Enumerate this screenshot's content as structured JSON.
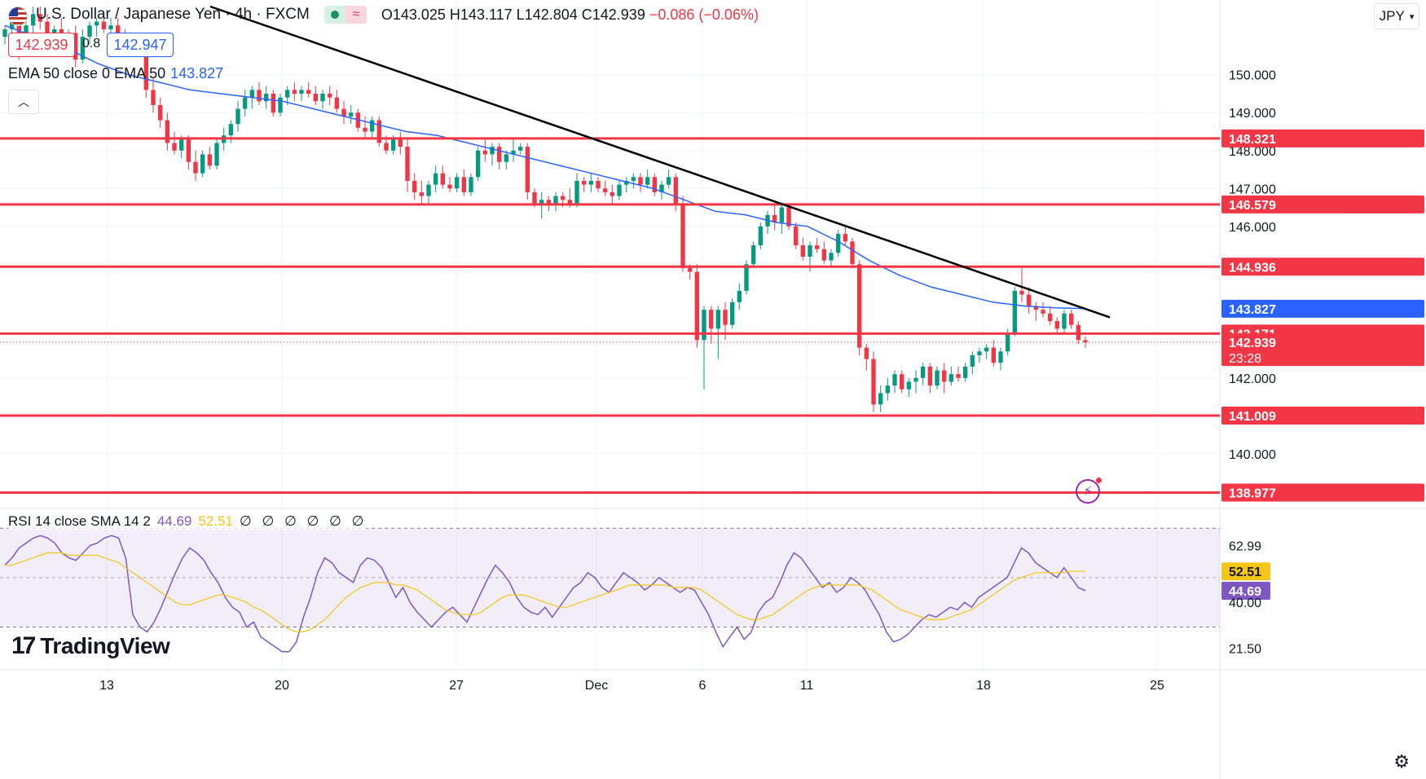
{
  "header": {
    "title": "U.S. Dollar / Japanese Yen · 4h · FXCM",
    "open": "O143.025",
    "high": "H143.117",
    "low": "L142.804",
    "close": "C142.939",
    "change": "−0.086 (−0.06%)"
  },
  "trade": {
    "sell": "142.939",
    "spread": "0.8",
    "buy": "142.947"
  },
  "ema_legend": {
    "label": "EMA 50 close 0 EMA 50",
    "value": "143.827"
  },
  "rsi_legend": {
    "label": "RSI 14 close SMA 14 2",
    "rsi": "44.69",
    "sma": "52.51",
    "placeholders": "∅ ∅ ∅ ∅ ∅ ∅"
  },
  "currency": "JPY",
  "brand": "TradingView",
  "colors": {
    "up": "#089981",
    "down": "#f23645",
    "ema": "#2962ff",
    "rsi": "#7e57c2",
    "rsi_sma": "#f5c518",
    "level": "#f23645",
    "trend": "#000000"
  },
  "chart_data": {
    "type": "candlestick",
    "symbol": "USDJPY",
    "timeframe": "4h",
    "price_axis": {
      "ticks": [
        150.0,
        149.0,
        148.0,
        147.0,
        146.0,
        142.0,
        140.0
      ],
      "range": [
        138.6,
        151.8
      ]
    },
    "x_axis": {
      "ticks": [
        "13",
        "20",
        "27",
        "Dec",
        "6",
        "11",
        "18",
        "25"
      ]
    },
    "levels": [
      148.321,
      146.579,
      144.936,
      143.171,
      141.009,
      138.977
    ],
    "level_labels": [
      "148.321",
      "146.579",
      "144.936",
      "143.171",
      "141.009",
      "138.977"
    ],
    "last_price": "142.939",
    "countdown": "23:28",
    "ema_value": "143.827",
    "trendline": [
      {
        "x": "Nov 16",
        "y": 151.8
      },
      {
        "x": "Dec 22",
        "y": 143.6
      }
    ],
    "ema50": [
      151.3,
      151.0,
      150.7,
      150.3,
      150.0,
      149.8,
      149.6,
      149.5,
      149.4,
      149.3,
      149.1,
      148.9,
      148.7,
      148.5,
      148.4,
      148.2,
      148.0,
      147.8,
      147.6,
      147.4,
      147.2,
      147.0,
      146.7,
      146.4,
      146.3,
      146.1,
      146.0,
      145.6,
      145.1,
      144.7,
      144.4,
      144.2,
      144.0,
      143.9,
      143.85,
      143.83
    ],
    "candles": [
      [
        151.0,
        151.3,
        150.8,
        151.2
      ],
      [
        151.2,
        151.6,
        151.0,
        151.4
      ],
      [
        151.4,
        151.6,
        150.4,
        150.6
      ],
      [
        150.6,
        151.4,
        150.5,
        151.3
      ],
      [
        151.3,
        151.8,
        151.1,
        151.6
      ],
      [
        151.6,
        151.8,
        151.2,
        151.4
      ],
      [
        151.4,
        151.6,
        151.0,
        151.1
      ],
      [
        151.1,
        151.3,
        150.9,
        151.2
      ],
      [
        151.2,
        151.5,
        150.7,
        150.8
      ],
      [
        150.8,
        151.2,
        150.6,
        151.1
      ],
      [
        151.1,
        151.3,
        150.2,
        150.4
      ],
      [
        150.4,
        151.2,
        150.3,
        151.0
      ],
      [
        151.0,
        151.4,
        150.8,
        151.3
      ],
      [
        151.3,
        151.5,
        151.0,
        151.4
      ],
      [
        151.4,
        151.6,
        151.1,
        151.2
      ],
      [
        151.2,
        151.5,
        151.0,
        151.3
      ],
      [
        151.3,
        151.5,
        150.9,
        151.0
      ],
      [
        151.0,
        151.2,
        150.6,
        150.7
      ],
      [
        150.7,
        151.0,
        150.5,
        150.9
      ],
      [
        150.9,
        151.0,
        150.6,
        150.8
      ],
      [
        150.8,
        150.9,
        149.4,
        149.6
      ],
      [
        149.6,
        149.9,
        149.0,
        149.2
      ],
      [
        149.2,
        149.4,
        148.6,
        148.8
      ],
      [
        148.8,
        149.0,
        148.0,
        148.2
      ],
      [
        148.2,
        148.5,
        147.9,
        148.0
      ],
      [
        148.0,
        148.4,
        147.8,
        148.3
      ],
      [
        148.3,
        148.4,
        147.5,
        147.7
      ],
      [
        147.7,
        148.0,
        147.2,
        147.4
      ],
      [
        147.4,
        148.0,
        147.3,
        147.9
      ],
      [
        147.9,
        148.1,
        147.5,
        147.6
      ],
      [
        147.6,
        148.3,
        147.5,
        148.2
      ],
      [
        148.2,
        148.6,
        148.0,
        148.4
      ],
      [
        148.4,
        148.8,
        148.2,
        148.7
      ],
      [
        148.7,
        149.3,
        148.5,
        149.1
      ],
      [
        149.1,
        149.6,
        148.9,
        149.4
      ],
      [
        149.4,
        149.7,
        149.1,
        149.6
      ],
      [
        149.6,
        149.8,
        149.2,
        149.3
      ],
      [
        149.3,
        149.7,
        149.1,
        149.5
      ],
      [
        149.5,
        149.6,
        148.9,
        149.0
      ],
      [
        149.0,
        149.5,
        148.9,
        149.4
      ],
      [
        149.4,
        149.7,
        149.2,
        149.6
      ],
      [
        149.6,
        149.8,
        149.3,
        149.5
      ],
      [
        149.5,
        149.7,
        149.3,
        149.6
      ],
      [
        149.6,
        149.8,
        149.4,
        149.5
      ],
      [
        149.5,
        149.7,
        149.2,
        149.3
      ],
      [
        149.3,
        149.6,
        149.1,
        149.5
      ],
      [
        149.5,
        149.7,
        149.2,
        149.4
      ],
      [
        149.4,
        149.6,
        149.0,
        149.1
      ],
      [
        149.1,
        149.3,
        148.7,
        148.9
      ],
      [
        148.9,
        149.2,
        148.7,
        149.0
      ],
      [
        149.0,
        149.1,
        148.5,
        148.6
      ],
      [
        148.6,
        148.9,
        148.3,
        148.5
      ],
      [
        148.5,
        148.9,
        148.3,
        148.8
      ],
      [
        148.8,
        148.9,
        148.1,
        148.2
      ],
      [
        148.2,
        148.4,
        147.9,
        148.0
      ],
      [
        148.0,
        148.4,
        147.9,
        148.3
      ],
      [
        148.3,
        148.5,
        147.9,
        148.1
      ],
      [
        148.1,
        148.3,
        146.9,
        147.2
      ],
      [
        147.2,
        147.4,
        146.7,
        146.9
      ],
      [
        146.9,
        147.2,
        146.6,
        146.8
      ],
      [
        146.8,
        147.2,
        146.6,
        147.1
      ],
      [
        147.1,
        147.6,
        146.9,
        147.4
      ],
      [
        147.4,
        147.6,
        147.0,
        147.1
      ],
      [
        147.1,
        147.3,
        146.9,
        147.0
      ],
      [
        147.0,
        147.4,
        146.9,
        147.3
      ],
      [
        147.3,
        147.5,
        146.8,
        146.9
      ],
      [
        146.9,
        147.4,
        146.8,
        147.3
      ],
      [
        147.3,
        148.1,
        147.2,
        148.0
      ],
      [
        148.0,
        148.3,
        147.7,
        147.9
      ],
      [
        147.9,
        148.2,
        147.6,
        148.1
      ],
      [
        148.1,
        148.2,
        147.5,
        147.7
      ],
      [
        147.7,
        148.0,
        147.5,
        147.9
      ],
      [
        147.9,
        148.3,
        147.7,
        148.0
      ],
      [
        148.0,
        148.2,
        147.9,
        148.1
      ],
      [
        148.1,
        148.2,
        146.7,
        146.9
      ],
      [
        146.9,
        147.0,
        146.5,
        146.6
      ],
      [
        146.6,
        146.9,
        146.2,
        146.7
      ],
      [
        146.7,
        146.8,
        146.4,
        146.6
      ],
      [
        146.6,
        146.9,
        146.4,
        146.8
      ],
      [
        146.8,
        146.9,
        146.5,
        146.7
      ],
      [
        146.7,
        147.0,
        146.5,
        146.6
      ],
      [
        146.6,
        147.4,
        146.5,
        147.2
      ],
      [
        147.2,
        147.3,
        146.9,
        147.1
      ],
      [
        147.1,
        147.4,
        146.9,
        147.2
      ],
      [
        147.2,
        147.3,
        146.9,
        147.0
      ],
      [
        147.0,
        147.2,
        146.8,
        146.9
      ],
      [
        146.9,
        147.1,
        146.6,
        146.8
      ],
      [
        146.8,
        147.2,
        146.7,
        147.1
      ],
      [
        147.1,
        147.3,
        146.9,
        147.2
      ],
      [
        147.2,
        147.4,
        147.0,
        147.3
      ],
      [
        147.3,
        147.4,
        146.9,
        147.1
      ],
      [
        147.1,
        147.5,
        147.0,
        147.3
      ],
      [
        147.3,
        147.4,
        146.8,
        146.9
      ],
      [
        146.9,
        147.2,
        146.7,
        147.1
      ],
      [
        147.1,
        147.5,
        147.0,
        147.3
      ],
      [
        147.3,
        147.4,
        146.4,
        146.6
      ],
      [
        146.6,
        146.8,
        144.8,
        144.9
      ],
      [
        144.9,
        145.0,
        144.6,
        144.8
      ],
      [
        144.8,
        145.0,
        142.8,
        143.0
      ],
      [
        143.0,
        143.9,
        141.7,
        143.8
      ],
      [
        143.8,
        143.9,
        142.9,
        143.3
      ],
      [
        143.3,
        143.9,
        142.5,
        143.8
      ],
      [
        143.8,
        144.0,
        143.0,
        143.4
      ],
      [
        143.4,
        144.1,
        143.3,
        144.0
      ],
      [
        144.0,
        144.5,
        143.8,
        144.3
      ],
      [
        144.3,
        145.1,
        144.2,
        145.0
      ],
      [
        145.0,
        145.6,
        144.9,
        145.5
      ],
      [
        145.5,
        146.1,
        145.4,
        146.0
      ],
      [
        146.0,
        146.4,
        145.8,
        146.3
      ],
      [
        146.3,
        146.6,
        145.9,
        146.1
      ],
      [
        146.1,
        146.6,
        145.8,
        146.5
      ],
      [
        146.5,
        146.6,
        145.9,
        146.0
      ],
      [
        146.0,
        146.1,
        145.4,
        145.5
      ],
      [
        145.5,
        145.7,
        145.1,
        145.2
      ],
      [
        145.2,
        145.6,
        144.8,
        145.5
      ],
      [
        145.5,
        145.7,
        145.3,
        145.4
      ],
      [
        145.4,
        145.6,
        145.0,
        145.1
      ],
      [
        145.1,
        145.4,
        144.9,
        145.3
      ],
      [
        145.3,
        145.9,
        145.2,
        145.8
      ],
      [
        145.8,
        146.0,
        145.5,
        145.6
      ],
      [
        145.6,
        145.7,
        144.9,
        145.0
      ],
      [
        145.0,
        145.1,
        142.6,
        142.8
      ],
      [
        142.8,
        142.9,
        142.2,
        142.5
      ],
      [
        142.5,
        142.7,
        141.1,
        141.3
      ],
      [
        141.3,
        141.8,
        141.1,
        141.6
      ],
      [
        141.6,
        142.0,
        141.4,
        141.8
      ],
      [
        141.8,
        142.2,
        141.6,
        142.1
      ],
      [
        142.1,
        142.2,
        141.6,
        141.7
      ],
      [
        141.7,
        142.0,
        141.5,
        141.9
      ],
      [
        141.9,
        142.2,
        141.6,
        142.0
      ],
      [
        142.0,
        142.4,
        141.8,
        142.3
      ],
      [
        142.3,
        142.4,
        141.6,
        141.8
      ],
      [
        141.8,
        142.3,
        141.7,
        142.2
      ],
      [
        142.2,
        142.4,
        141.6,
        141.9
      ],
      [
        141.9,
        142.3,
        141.8,
        142.1
      ],
      [
        142.1,
        142.3,
        141.9,
        142.0
      ],
      [
        142.0,
        142.4,
        141.9,
        142.3
      ],
      [
        142.3,
        142.7,
        142.1,
        142.6
      ],
      [
        142.6,
        142.8,
        142.4,
        142.7
      ],
      [
        142.7,
        142.9,
        142.5,
        142.8
      ],
      [
        142.8,
        143.0,
        142.3,
        142.4
      ],
      [
        142.4,
        142.8,
        142.2,
        142.7
      ],
      [
        142.7,
        143.3,
        142.6,
        143.2
      ],
      [
        143.2,
        144.4,
        143.1,
        144.3
      ],
      [
        144.3,
        144.9,
        144.0,
        144.2
      ],
      [
        144.2,
        144.4,
        143.7,
        143.9
      ],
      [
        143.9,
        144.0,
        143.5,
        143.8
      ],
      [
        143.8,
        144.0,
        143.6,
        143.7
      ],
      [
        143.7,
        143.9,
        143.4,
        143.5
      ],
      [
        143.5,
        143.6,
        143.2,
        143.3
      ],
      [
        143.3,
        143.8,
        143.2,
        143.7
      ],
      [
        143.7,
        143.8,
        143.3,
        143.4
      ],
      [
        143.4,
        143.5,
        142.9,
        143.0
      ],
      [
        143.0,
        143.1,
        142.8,
        142.939
      ]
    ],
    "rsi": {
      "axis_ticks": [
        "62.99",
        "52.51",
        "44.69",
        "40.00",
        "21.50"
      ],
      "band": [
        30,
        70
      ],
      "rsi_value": "44.69",
      "sma_value": "52.51",
      "values": [
        55,
        58,
        62,
        64,
        66,
        67,
        66,
        64,
        60,
        58,
        57,
        60,
        63,
        64,
        66,
        67,
        66,
        58,
        35,
        30,
        28,
        32,
        38,
        45,
        52,
        58,
        62,
        60,
        57,
        52,
        48,
        42,
        38,
        36,
        30,
        32,
        26,
        24,
        22,
        20,
        20,
        24,
        34,
        42,
        52,
        58,
        56,
        52,
        50,
        48,
        55,
        58,
        57,
        54,
        48,
        42,
        46,
        40,
        36,
        33,
        30,
        33,
        36,
        38,
        35,
        32,
        38,
        44,
        50,
        55,
        52,
        48,
        42,
        38,
        36,
        35,
        38,
        34,
        38,
        42,
        46,
        48,
        52,
        50,
        46,
        44,
        48,
        52,
        50,
        48,
        45,
        47,
        50,
        48,
        46,
        44,
        46,
        45,
        40,
        35,
        28,
        22,
        26,
        30,
        25,
        28,
        36,
        40,
        42,
        48,
        55,
        60,
        58,
        54,
        50,
        46,
        48,
        44,
        46,
        50,
        48,
        45,
        40,
        35,
        28,
        24,
        25,
        27,
        30,
        33,
        35,
        34,
        36,
        38,
        37,
        40,
        38,
        42,
        44,
        46,
        48,
        50,
        56,
        62,
        60,
        56,
        54,
        52,
        50,
        54,
        50,
        46,
        44.69
      ],
      "sma_values": [
        55,
        55,
        56,
        57,
        58,
        59,
        60,
        60,
        60,
        59,
        59,
        59,
        59,
        59,
        58,
        57,
        56,
        54,
        52,
        50,
        48,
        46,
        44,
        42,
        40,
        39,
        39,
        40,
        41,
        42,
        43,
        43,
        42,
        41,
        40,
        38,
        37,
        35,
        33,
        31,
        29,
        28,
        28,
        29,
        31,
        33,
        36,
        39,
        42,
        44,
        46,
        47,
        48,
        48,
        48,
        47,
        47,
        46,
        45,
        43,
        41,
        39,
        37,
        36,
        35,
        35,
        35,
        36,
        38,
        40,
        42,
        43,
        43,
        43,
        42,
        41,
        40,
        39,
        38,
        38,
        39,
        40,
        41,
        42,
        43,
        44,
        45,
        46,
        47,
        47,
        47,
        47,
        47,
        47,
        46,
        46,
        46,
        46,
        45,
        43,
        41,
        39,
        37,
        35,
        34,
        33,
        33,
        34,
        35,
        37,
        39,
        41,
        43,
        45,
        46,
        47,
        47,
        47,
        47,
        47,
        47,
        46,
        45,
        43,
        41,
        39,
        37,
        36,
        35,
        34,
        33,
        33,
        33,
        34,
        35,
        36,
        37,
        39,
        41,
        43,
        45,
        47,
        49,
        50,
        51,
        52,
        52,
        52,
        52,
        52,
        52.51,
        52.51,
        52.51
      ]
    }
  }
}
